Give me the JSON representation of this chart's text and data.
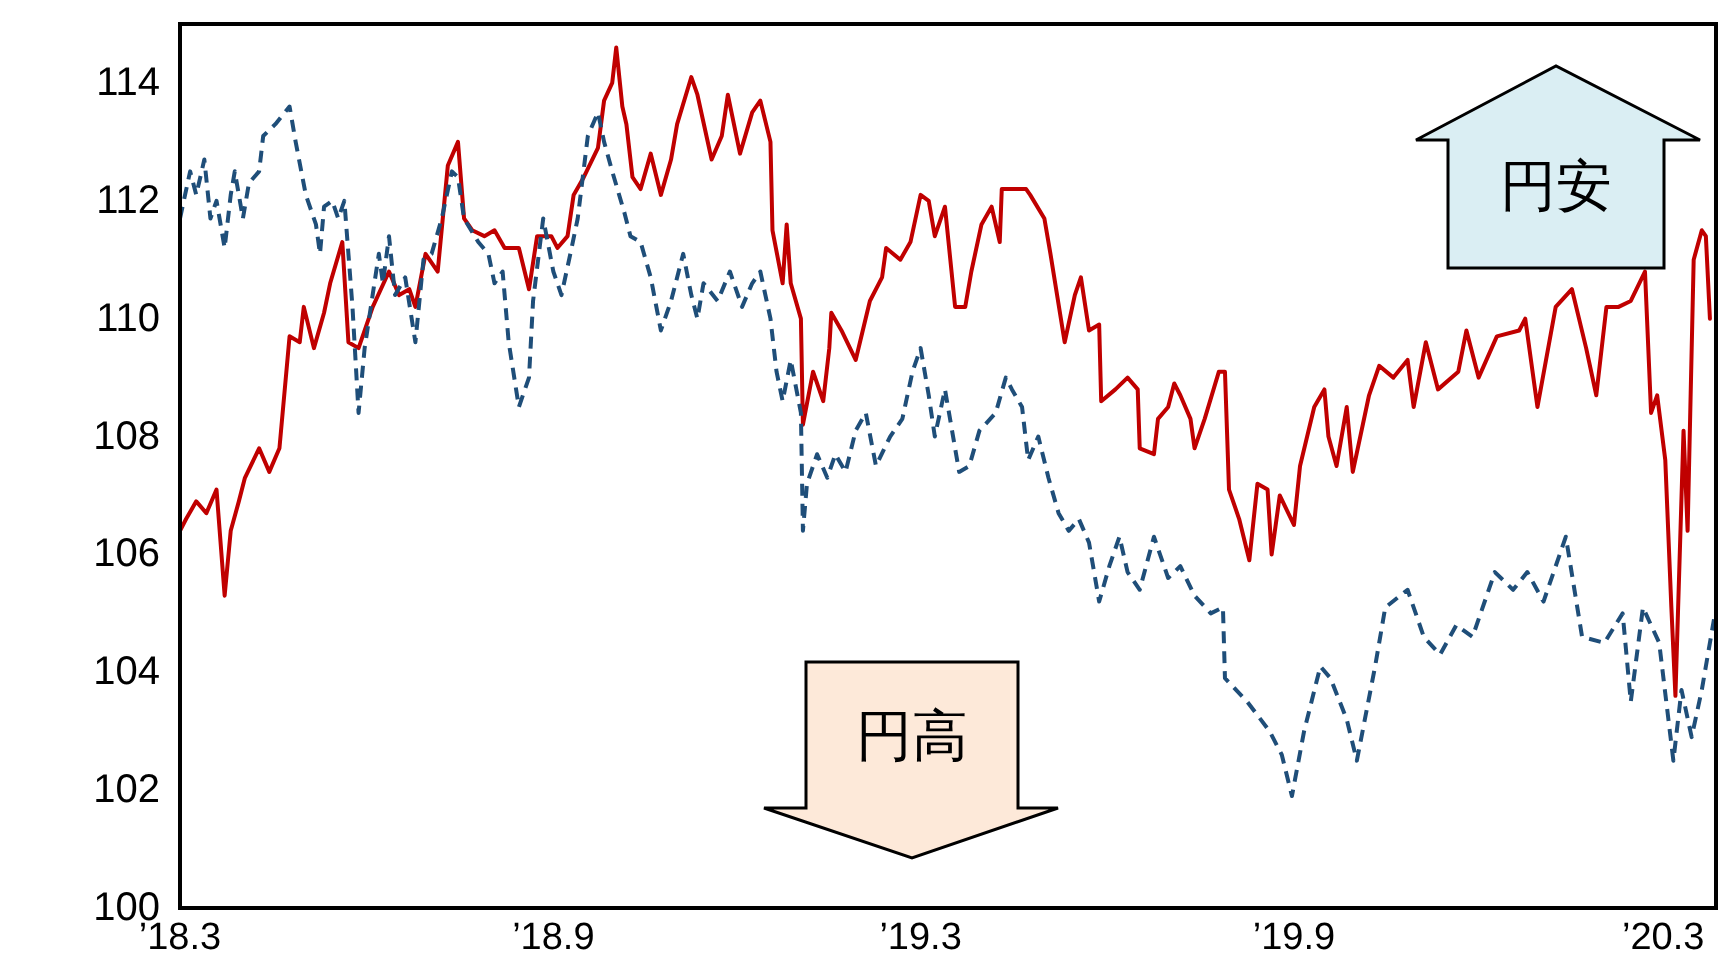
{
  "chart_data": {
    "type": "line",
    "xlim": [
      "2018-03-01",
      "2020-03-27"
    ],
    "xticks": [
      {
        "value": "2018-03-01",
        "label": "’18.3"
      },
      {
        "value": "2018-09-01",
        "label": "’18.9"
      },
      {
        "value": "2019-03-01",
        "label": "’19.3"
      },
      {
        "value": "2019-09-01",
        "label": "’19.9"
      },
      {
        "value": "2020-03-01",
        "label": "’20.3"
      }
    ],
    "ylim": [
      100,
      115
    ],
    "yticks": [
      100,
      102,
      104,
      106,
      108,
      110,
      112,
      114
    ],
    "grid": false,
    "annotations": [
      "円安",
      "円高"
    ],
    "series": [
      {
        "color": "#c00000",
        "line_style": "solid",
        "x": [
          "2018-03-01",
          "2018-03-04",
          "2018-03-09",
          "2018-03-14",
          "2018-03-19",
          "2018-03-23",
          "2018-03-26",
          "2018-03-30",
          "2018-04-02",
          "2018-04-09",
          "2018-04-14",
          "2018-04-19",
          "2018-04-24",
          "2018-04-29",
          "2018-05-01",
          "2018-05-06",
          "2018-05-11",
          "2018-05-14",
          "2018-05-20",
          "2018-05-23",
          "2018-05-28",
          "2018-06-04",
          "2018-06-12",
          "2018-06-17",
          "2018-06-22",
          "2018-06-25",
          "2018-06-30",
          "2018-07-06",
          "2018-07-11",
          "2018-07-16",
          "2018-07-19",
          "2018-07-23",
          "2018-07-29",
          "2018-08-03",
          "2018-08-08",
          "2018-08-15",
          "2018-08-20",
          "2018-08-24",
          "2018-08-31",
          "2018-09-03",
          "2018-09-08",
          "2018-09-11",
          "2018-09-16",
          "2018-09-23",
          "2018-09-26",
          "2018-09-30",
          "2018-10-02",
          "2018-10-05",
          "2018-10-07",
          "2018-10-10",
          "2018-10-14",
          "2018-10-19",
          "2018-10-24",
          "2018-10-29",
          "2018-11-01",
          "2018-11-08",
          "2018-11-11",
          "2018-11-18",
          "2018-11-23",
          "2018-11-26",
          "2018-12-02",
          "2018-12-08",
          "2018-12-12",
          "2018-12-17",
          "2018-12-18",
          "2018-12-23",
          "2018-12-25",
          "2018-12-27",
          "2019-01-01",
          "2019-01-02",
          "2019-01-07",
          "2019-01-12",
          "2019-01-15",
          "2019-01-16",
          "2019-01-21",
          "2019-01-28",
          "2019-02-04",
          "2019-02-10",
          "2019-02-12",
          "2019-02-19",
          "2019-02-24",
          "2019-03-01",
          "2019-03-05",
          "2019-03-08",
          "2019-03-13",
          "2019-03-18",
          "2019-03-23",
          "2019-03-26",
          "2019-03-31",
          "2019-04-05",
          "2019-04-09",
          "2019-04-10",
          "2019-04-22",
          "2019-04-24",
          "2019-05-01",
          "2019-05-04",
          "2019-05-11",
          "2019-05-16",
          "2019-05-19",
          "2019-05-23",
          "2019-05-28",
          "2019-05-29",
          "2019-06-05",
          "2019-06-11",
          "2019-06-16",
          "2019-06-17",
          "2019-06-24",
          "2019-06-26",
          "2019-07-01",
          "2019-07-04",
          "2019-07-07",
          "2019-07-12",
          "2019-07-14",
          "2019-07-19",
          "2019-07-26",
          "2019-07-29",
          "2019-07-31",
          "2019-08-05",
          "2019-08-10",
          "2019-08-14",
          "2019-08-19",
          "2019-08-21",
          "2019-08-25",
          "2019-09-01",
          "2019-09-04",
          "2019-09-11",
          "2019-09-16",
          "2019-09-18",
          "2019-09-22",
          "2019-09-27",
          "2019-09-30",
          "2019-10-08",
          "2019-10-13",
          "2019-10-20",
          "2019-10-27",
          "2019-10-30",
          "2019-11-05",
          "2019-11-11",
          "2019-11-21",
          "2019-11-25",
          "2019-12-01",
          "2019-12-10",
          "2019-12-21",
          "2019-12-24",
          "2019-12-30",
          "2020-01-08",
          "2020-01-16",
          "2020-01-23",
          "2020-01-28",
          "2020-02-02",
          "2020-02-08",
          "2020-02-14",
          "2020-02-21",
          "2020-02-24",
          "2020-02-27",
          "2020-03-02",
          "2020-03-05",
          "2020-03-07",
          "2020-03-11",
          "2020-03-13",
          "2020-03-16",
          "2020-03-20",
          "2020-03-22",
          "2020-03-24"
        ],
        "values": [
          106.4,
          106.6,
          106.9,
          106.7,
          107.1,
          105.3,
          106.4,
          106.9,
          107.3,
          107.8,
          107.4,
          107.8,
          109.7,
          109.6,
          110.2,
          109.5,
          110.1,
          110.6,
          111.3,
          109.6,
          109.5,
          110.2,
          110.8,
          110.4,
          110.5,
          110.2,
          111.1,
          110.8,
          112.6,
          113.0,
          111.7,
          111.5,
          111.4,
          111.5,
          111.2,
          111.2,
          110.5,
          111.4,
          111.4,
          111.2,
          111.4,
          112.1,
          112.4,
          112.9,
          113.7,
          114.0,
          114.6,
          113.6,
          113.3,
          112.4,
          112.2,
          112.8,
          112.1,
          112.7,
          113.3,
          114.1,
          113.8,
          112.7,
          113.1,
          113.8,
          112.8,
          113.5,
          113.7,
          113.0,
          111.5,
          110.6,
          111.6,
          110.6,
          110.0,
          108.2,
          109.1,
          108.6,
          109.5,
          110.1,
          109.8,
          109.3,
          110.3,
          110.7,
          111.2,
          111.0,
          111.3,
          112.1,
          112.0,
          111.4,
          111.9,
          110.2,
          110.2,
          110.8,
          111.6,
          111.9,
          111.3,
          112.2,
          112.2,
          112.1,
          111.7,
          111.1,
          109.6,
          110.4,
          110.7,
          109.8,
          109.9,
          108.6,
          108.8,
          109.0,
          108.8,
          107.8,
          107.7,
          108.3,
          108.5,
          108.9,
          108.7,
          108.3,
          107.8,
          108.3,
          109.1,
          109.1,
          107.1,
          106.6,
          105.9,
          107.2,
          107.1,
          106.0,
          107.0,
          106.5,
          107.5,
          108.5,
          108.8,
          108.0,
          107.5,
          108.5,
          107.4,
          108.7,
          109.2,
          109.0,
          109.3,
          108.5,
          109.6,
          108.8,
          109.1,
          109.8,
          109.0,
          109.7,
          109.8,
          110.0,
          108.5,
          110.2,
          110.5,
          109.5,
          108.7,
          110.2,
          110.2,
          110.3,
          110.8,
          108.4,
          108.7,
          107.6,
          105.1,
          103.6,
          108.1,
          106.4,
          111.0,
          111.5,
          111.4,
          110.0
        ]
      },
      {
        "color": "#1f4e79",
        "line_style": "dashed",
        "x": [
          "2018-03-01",
          "2018-03-06",
          "2018-03-09",
          "2018-03-13",
          "2018-03-16",
          "2018-03-19",
          "2018-03-23",
          "2018-03-26",
          "2018-03-28",
          "2018-04-01",
          "2018-04-04",
          "2018-04-09",
          "2018-04-11",
          "2018-04-17",
          "2018-04-24",
          "2018-04-27",
          "2018-05-02",
          "2018-05-07",
          "2018-05-09",
          "2018-05-11",
          "2018-05-15",
          "2018-05-18",
          "2018-05-21",
          "2018-05-23",
          "2018-05-25",
          "2018-05-28",
          "2018-05-31",
          "2018-06-07",
          "2018-06-09",
          "2018-06-12",
          "2018-06-15",
          "2018-06-20",
          "2018-06-25",
          "2018-06-29",
          "2018-07-03",
          "2018-07-08",
          "2018-07-13",
          "2018-07-16",
          "2018-07-19",
          "2018-07-26",
          "2018-07-31",
          "2018-08-03",
          "2018-08-07",
          "2018-08-10",
          "2018-08-15",
          "2018-08-20",
          "2018-08-22",
          "2018-08-27",
          "2018-09-01",
          "2018-09-05",
          "2018-09-10",
          "2018-09-13",
          "2018-09-18",
          "2018-09-23",
          "2018-09-26",
          "2018-09-30",
          "2018-10-06",
          "2018-10-09",
          "2018-10-14",
          "2018-10-19",
          "2018-10-24",
          "2018-10-29",
          "2018-11-04",
          "2018-11-08",
          "2018-11-11",
          "2018-11-14",
          "2018-11-21",
          "2018-11-27",
          "2018-12-03",
          "2018-12-08",
          "2018-12-12",
          "2018-12-17",
          "2018-12-20",
          "2018-12-23",
          "2018-12-27",
          "2019-01-01",
          "2019-01-02",
          "2019-01-04",
          "2019-01-09",
          "2019-01-14",
          "2019-01-18",
          "2019-01-23",
          "2019-01-28",
          "2019-02-02",
          "2019-02-07",
          "2019-02-14",
          "2019-02-20",
          "2019-02-25",
          "2019-03-01",
          "2019-03-05",
          "2019-03-08",
          "2019-03-13",
          "2019-03-20",
          "2019-03-25",
          "2019-03-30",
          "2019-04-07",
          "2019-04-12",
          "2019-04-15",
          "2019-04-20",
          "2019-04-23",
          "2019-04-28",
          "2019-05-03",
          "2019-05-08",
          "2019-05-13",
          "2019-05-18",
          "2019-05-23",
          "2019-05-28",
          "2019-06-02",
          "2019-06-07",
          "2019-06-11",
          "2019-06-17",
          "2019-06-24",
          "2019-07-01",
          "2019-07-07",
          "2019-07-14",
          "2019-07-22",
          "2019-07-28",
          "2019-07-29",
          "2019-08-09",
          "2019-08-20",
          "2019-08-26",
          "2019-08-31",
          "2019-09-06",
          "2019-09-14",
          "2019-09-19",
          "2019-09-27",
          "2019-10-02",
          "2019-10-11",
          "2019-10-16",
          "2019-10-27",
          "2019-11-04",
          "2019-11-12",
          "2019-11-20",
          "2019-11-28",
          "2019-12-09",
          "2019-12-18",
          "2019-12-25",
          "2020-01-02",
          "2020-01-13",
          "2020-01-21",
          "2020-02-01",
          "2020-02-10",
          "2020-02-14",
          "2020-02-20",
          "2020-02-28",
          "2020-03-06",
          "2020-03-10",
          "2020-03-15",
          "2020-03-20",
          "2020-03-26"
        ],
        "values": [
          111.7,
          112.5,
          112.1,
          112.7,
          111.7,
          112.0,
          111.2,
          112.1,
          112.5,
          111.7,
          112.3,
          112.5,
          113.1,
          113.3,
          113.6,
          113.0,
          112.1,
          111.6,
          111.1,
          111.9,
          112.0,
          111.7,
          112.0,
          111.1,
          110.2,
          108.4,
          109.5,
          111.1,
          110.6,
          111.4,
          110.4,
          110.7,
          109.6,
          111.0,
          111.1,
          111.7,
          112.5,
          112.4,
          111.7,
          111.3,
          111.1,
          110.6,
          110.8,
          109.6,
          108.5,
          109.0,
          110.3,
          111.7,
          110.8,
          110.4,
          111.2,
          111.7,
          113.1,
          113.5,
          113.0,
          112.5,
          111.8,
          111.4,
          111.3,
          110.7,
          109.8,
          110.3,
          111.1,
          110.4,
          110.0,
          110.6,
          110.3,
          110.8,
          110.2,
          110.6,
          110.8,
          110.0,
          109.1,
          108.6,
          109.3,
          108.4,
          106.4,
          107.2,
          107.7,
          107.3,
          107.7,
          107.4,
          108.1,
          108.4,
          107.5,
          108.0,
          108.3,
          109.1,
          109.5,
          108.7,
          108.0,
          108.8,
          107.4,
          107.5,
          108.1,
          108.4,
          109.0,
          108.8,
          108.5,
          107.6,
          108.0,
          107.3,
          106.7,
          106.4,
          106.6,
          106.2,
          105.2,
          105.8,
          106.3,
          105.7,
          105.4,
          106.3,
          105.6,
          105.8,
          105.3,
          105.0,
          105.1,
          103.9,
          103.5,
          103.0,
          102.6,
          101.9,
          103.0,
          104.1,
          103.9,
          103.2,
          102.5,
          104.1,
          105.1,
          105.4,
          104.6,
          104.3,
          104.8,
          104.6,
          105.7,
          105.4,
          105.7,
          105.2,
          106.3,
          104.6,
          104.5,
          105.0,
          103.5,
          105.1,
          104.5,
          102.5,
          103.7,
          102.9,
          103.7,
          104.9
        ]
      }
    ]
  }
}
